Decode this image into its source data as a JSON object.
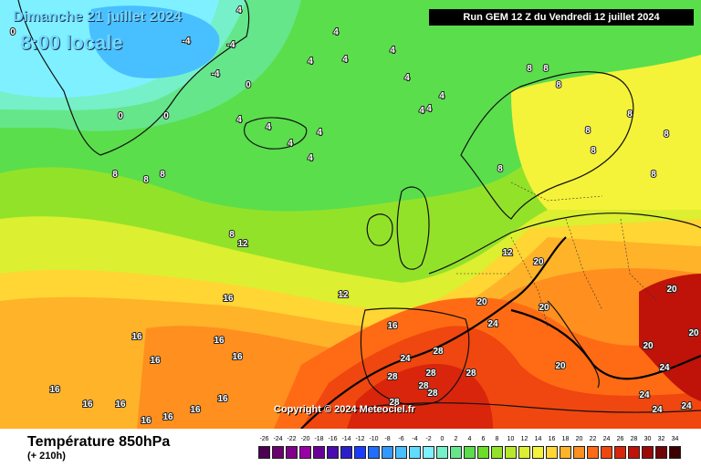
{
  "header": {
    "date": "Dimanche 21 juillet 2024",
    "time": "8:00 locale",
    "run": "Run GEM 12 Z du Vendredi 12 juillet 2024"
  },
  "copyright": "Copyright © 2024 Meteociel.fr",
  "legend": {
    "title": "Température 850hPa",
    "subtitle": "(+ 210h)",
    "ticks": [
      "-26",
      "-24",
      "-22",
      "-20",
      "-18",
      "-16",
      "-14",
      "-12",
      "-10",
      "-8",
      "-6",
      "-4",
      "-2",
      "0",
      "2",
      "4",
      "6",
      "8",
      "10",
      "12",
      "14",
      "16",
      "18",
      "20",
      "22",
      "24",
      "26",
      "28",
      "30",
      "32",
      "34"
    ],
    "colors": [
      "#4b0052",
      "#6a0071",
      "#80008a",
      "#9a00a6",
      "#6b0099",
      "#4a0bb0",
      "#2b1ecc",
      "#1a3cff",
      "#1f6eff",
      "#3299ff",
      "#48bfff",
      "#60dcff",
      "#7ff0ff",
      "#76f0c8",
      "#66e68a",
      "#5ade4c",
      "#6bde2a",
      "#93e22a",
      "#b8e82a",
      "#dcef30",
      "#f5f23a",
      "#ffd634",
      "#ffb329",
      "#ff8f1e",
      "#ff6b14",
      "#f0460f",
      "#d9250c",
      "#bf1209",
      "#9c0808",
      "#700606",
      "#3d0000"
    ]
  },
  "map_labels": [
    {
      "t": "4"
    },
    {
      "t": "0"
    },
    {
      "t": "-4"
    },
    {
      "t": "-4"
    },
    {
      "t": "0"
    },
    {
      "t": "-4"
    },
    {
      "t": "0"
    },
    {
      "t": "0"
    },
    {
      "t": "4"
    },
    {
      "t": "4"
    },
    {
      "t": "4"
    },
    {
      "t": "4"
    },
    {
      "t": "4"
    },
    {
      "t": "4"
    },
    {
      "t": "4"
    },
    {
      "t": "4"
    },
    {
      "t": "4"
    },
    {
      "t": "4"
    },
    {
      "t": "4"
    },
    {
      "t": "4"
    },
    {
      "t": "4"
    },
    {
      "t": "8"
    },
    {
      "t": "8"
    },
    {
      "t": "8"
    },
    {
      "t": "8"
    },
    {
      "t": "8"
    },
    {
      "t": "8"
    },
    {
      "t": "8"
    },
    {
      "t": "8"
    },
    {
      "t": "8"
    },
    {
      "t": "8"
    },
    {
      "t": "8"
    },
    {
      "t": "8"
    },
    {
      "t": "8"
    },
    {
      "t": "12"
    },
    {
      "t": "12"
    },
    {
      "t": "12"
    },
    {
      "t": "16"
    },
    {
      "t": "16"
    },
    {
      "t": "16"
    },
    {
      "t": "16"
    },
    {
      "t": "16"
    },
    {
      "t": "16"
    },
    {
      "t": "16"
    },
    {
      "t": "16"
    },
    {
      "t": "16"
    },
    {
      "t": "16"
    },
    {
      "t": "16"
    },
    {
      "t": "16"
    },
    {
      "t": "16"
    },
    {
      "t": "20"
    },
    {
      "t": "20"
    },
    {
      "t": "20"
    },
    {
      "t": "20"
    },
    {
      "t": "20"
    },
    {
      "t": "20"
    },
    {
      "t": "20"
    },
    {
      "t": "24"
    },
    {
      "t": "24"
    },
    {
      "t": "24"
    },
    {
      "t": "24"
    },
    {
      "t": "24"
    },
    {
      "t": "24"
    },
    {
      "t": "28"
    },
    {
      "t": "28"
    },
    {
      "t": "28"
    },
    {
      "t": "28"
    },
    {
      "t": "28"
    },
    {
      "t": "28"
    },
    {
      "t": "28"
    }
  ]
}
